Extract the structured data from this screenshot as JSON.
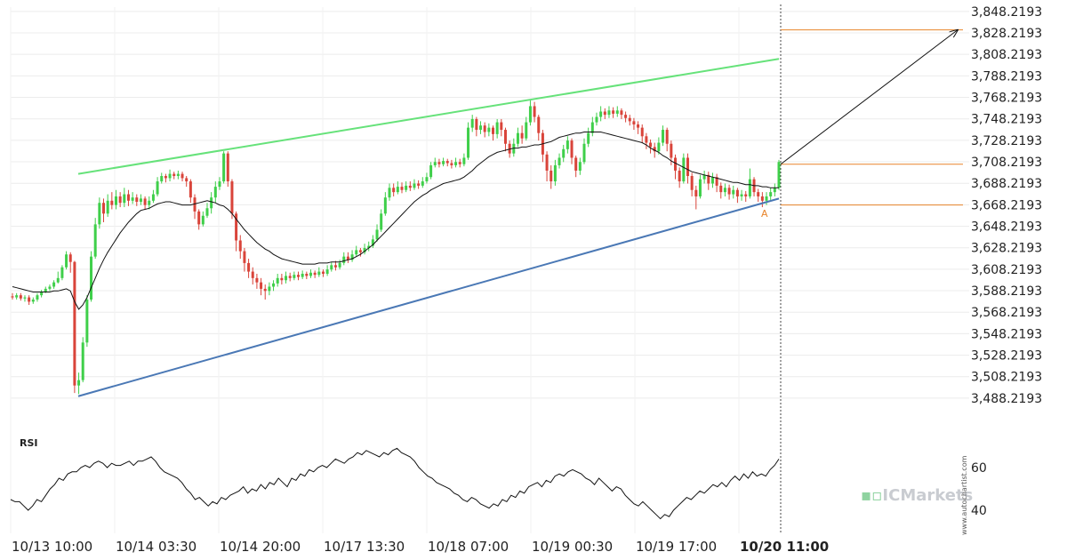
{
  "chart_data": {
    "type": "candlestick",
    "price_axis": {
      "ticks": [
        "3,848.2193",
        "3,828.2193",
        "3,808.2193",
        "3,788.2193",
        "3,768.2193",
        "3,748.2193",
        "3,728.2193",
        "3,708.2193",
        "3,688.2193",
        "3,668.2193",
        "3,648.2193",
        "3,628.2193",
        "3,608.2193",
        "3,588.2193",
        "3,568.2193",
        "3,548.2193",
        "3,528.2193",
        "3,508.2193",
        "3,488.2193"
      ],
      "range": [
        3478.2193,
        3852.2193
      ],
      "position": "right"
    },
    "time_axis": {
      "labels": [
        "10/13 10:00",
        "10/14 03:30",
        "10/14 20:00",
        "10/17 13:30",
        "10/18 07:00",
        "10/19 00:30",
        "10/19 17:00",
        "10/20 11:00"
      ],
      "highlighted": "10/20 11:00"
    },
    "candles": [
      [
        3583,
        3582,
        3586,
        3580
      ],
      [
        3582,
        3584,
        3586,
        3580
      ],
      [
        3584,
        3581,
        3586,
        3579
      ],
      [
        3581,
        3582,
        3584,
        3578
      ],
      [
        3582,
        3578,
        3584,
        3575
      ],
      [
        3578,
        3580,
        3582,
        3576
      ],
      [
        3580,
        3584,
        3586,
        3578
      ],
      [
        3584,
        3587,
        3589,
        3582
      ],
      [
        3587,
        3590,
        3592,
        3586
      ],
      [
        3590,
        3592,
        3594,
        3588
      ],
      [
        3592,
        3596,
        3598,
        3590
      ],
      [
        3596,
        3600,
        3606,
        3595
      ],
      [
        3600,
        3610,
        3612,
        3598
      ],
      [
        3610,
        3622,
        3625,
        3608
      ],
      [
        3622,
        3615,
        3624,
        3605
      ],
      [
        3615,
        3500,
        3616,
        3493
      ],
      [
        3500,
        3505,
        3512,
        3492
      ],
      [
        3505,
        3540,
        3545,
        3503
      ],
      [
        3540,
        3580,
        3584,
        3536
      ],
      [
        3580,
        3620,
        3625,
        3578
      ],
      [
        3620,
        3650,
        3656,
        3618
      ],
      [
        3650,
        3670,
        3675,
        3646
      ],
      [
        3670,
        3660,
        3674,
        3652
      ],
      [
        3660,
        3672,
        3678,
        3657
      ],
      [
        3672,
        3668,
        3680,
        3664
      ],
      [
        3668,
        3676,
        3682,
        3664
      ],
      [
        3676,
        3670,
        3680,
        3666
      ],
      [
        3670,
        3678,
        3684,
        3666
      ],
      [
        3678,
        3672,
        3682,
        3667
      ],
      [
        3672,
        3675,
        3680,
        3669
      ],
      [
        3675,
        3671,
        3678,
        3667
      ],
      [
        3671,
        3674,
        3678,
        3668
      ],
      [
        3674,
        3668,
        3676,
        3664
      ],
      [
        3668,
        3672,
        3676,
        3664
      ],
      [
        3672,
        3678,
        3682,
        3670
      ],
      [
        3678,
        3690,
        3694,
        3676
      ],
      [
        3690,
        3695,
        3698,
        3688
      ],
      [
        3695,
        3693,
        3697,
        3689
      ],
      [
        3693,
        3697,
        3701,
        3690
      ],
      [
        3697,
        3695,
        3699,
        3692
      ],
      [
        3695,
        3697,
        3700,
        3692
      ],
      [
        3697,
        3693,
        3699,
        3690
      ],
      [
        3693,
        3690,
        3695,
        3685
      ],
      [
        3690,
        3675,
        3692,
        3670
      ],
      [
        3675,
        3662,
        3678,
        3655
      ],
      [
        3662,
        3650,
        3664,
        3645
      ],
      [
        3650,
        3658,
        3662,
        3648
      ],
      [
        3658,
        3665,
        3670,
        3656
      ],
      [
        3665,
        3675,
        3680,
        3660
      ],
      [
        3675,
        3685,
        3690,
        3670
      ],
      [
        3685,
        3690,
        3694,
        3682
      ],
      [
        3690,
        3716,
        3718,
        3688
      ],
      [
        3716,
        3690,
        3718,
        3685
      ],
      [
        3690,
        3660,
        3692,
        3655
      ],
      [
        3660,
        3635,
        3662,
        3625
      ],
      [
        3635,
        3625,
        3640,
        3618
      ],
      [
        3625,
        3614,
        3628,
        3606
      ],
      [
        3614,
        3606,
        3618,
        3600
      ],
      [
        3606,
        3600,
        3610,
        3594
      ],
      [
        3600,
        3596,
        3604,
        3590
      ],
      [
        3596,
        3590,
        3600,
        3584
      ],
      [
        3590,
        3588,
        3594,
        3580
      ],
      [
        3588,
        3592,
        3596,
        3584
      ],
      [
        3592,
        3595,
        3598,
        3588
      ],
      [
        3595,
        3600,
        3604,
        3592
      ],
      [
        3600,
        3598,
        3604,
        3594
      ],
      [
        3598,
        3602,
        3606,
        3595
      ],
      [
        3602,
        3600,
        3605,
        3597
      ],
      [
        3600,
        3603,
        3606,
        3598
      ],
      [
        3603,
        3601,
        3606,
        3598
      ],
      [
        3601,
        3604,
        3607,
        3599
      ],
      [
        3604,
        3602,
        3606,
        3599
      ],
      [
        3602,
        3605,
        3608,
        3600
      ],
      [
        3605,
        3603,
        3607,
        3600
      ],
      [
        3603,
        3606,
        3610,
        3601
      ],
      [
        3606,
        3604,
        3608,
        3601
      ],
      [
        3604,
        3608,
        3612,
        3602
      ],
      [
        3608,
        3612,
        3615,
        3606
      ],
      [
        3612,
        3610,
        3616,
        3607
      ],
      [
        3610,
        3614,
        3617,
        3608
      ],
      [
        3614,
        3620,
        3624,
        3612
      ],
      [
        3620,
        3617,
        3624,
        3614
      ],
      [
        3617,
        3622,
        3626,
        3615
      ],
      [
        3622,
        3626,
        3630,
        3620
      ],
      [
        3626,
        3624,
        3628,
        3620
      ],
      [
        3624,
        3628,
        3632,
        3622
      ],
      [
        3628,
        3630,
        3634,
        3625
      ],
      [
        3630,
        3636,
        3640,
        3628
      ],
      [
        3636,
        3645,
        3650,
        3634
      ],
      [
        3645,
        3660,
        3664,
        3643
      ],
      [
        3660,
        3675,
        3680,
        3658
      ],
      [
        3675,
        3684,
        3688,
        3672
      ],
      [
        3684,
        3680,
        3688,
        3676
      ],
      [
        3680,
        3685,
        3690,
        3678
      ],
      [
        3685,
        3682,
        3689,
        3679
      ],
      [
        3682,
        3686,
        3690,
        3680
      ],
      [
        3686,
        3684,
        3690,
        3681
      ],
      [
        3684,
        3688,
        3692,
        3682
      ],
      [
        3688,
        3686,
        3691,
        3683
      ],
      [
        3686,
        3690,
        3694,
        3684
      ],
      [
        3690,
        3694,
        3698,
        3688
      ],
      [
        3694,
        3705,
        3708,
        3692
      ],
      [
        3705,
        3708,
        3712,
        3703
      ],
      [
        3708,
        3706,
        3711,
        3703
      ],
      [
        3706,
        3709,
        3712,
        3704
      ],
      [
        3709,
        3707,
        3711,
        3704
      ],
      [
        3707,
        3705,
        3710,
        3702
      ],
      [
        3705,
        3708,
        3712,
        3703
      ],
      [
        3708,
        3706,
        3711,
        3703
      ],
      [
        3706,
        3712,
        3716,
        3704
      ],
      [
        3712,
        3740,
        3745,
        3710
      ],
      [
        3740,
        3748,
        3752,
        3736
      ],
      [
        3748,
        3738,
        3750,
        3732
      ],
      [
        3738,
        3742,
        3746,
        3734
      ],
      [
        3742,
        3736,
        3745,
        3731
      ],
      [
        3736,
        3740,
        3744,
        3732
      ],
      [
        3740,
        3734,
        3742,
        3728
      ],
      [
        3734,
        3745,
        3748,
        3730
      ],
      [
        3745,
        3738,
        3748,
        3732
      ],
      [
        3738,
        3725,
        3740,
        3718
      ],
      [
        3725,
        3716,
        3728,
        3712
      ],
      [
        3716,
        3725,
        3730,
        3713
      ],
      [
        3725,
        3735,
        3740,
        3722
      ],
      [
        3735,
        3730,
        3742,
        3725
      ],
      [
        3730,
        3745,
        3750,
        3728
      ],
      [
        3745,
        3760,
        3766,
        3742
      ],
      [
        3760,
        3750,
        3764,
        3745
      ],
      [
        3750,
        3735,
        3752,
        3728
      ],
      [
        3735,
        3715,
        3738,
        3708
      ],
      [
        3715,
        3700,
        3718,
        3690
      ],
      [
        3700,
        3690,
        3705,
        3683
      ],
      [
        3690,
        3705,
        3710,
        3686
      ],
      [
        3705,
        3712,
        3716,
        3702
      ],
      [
        3712,
        3720,
        3724,
        3708
      ],
      [
        3720,
        3728,
        3732,
        3716
      ],
      [
        3728,
        3712,
        3730,
        3706
      ],
      [
        3712,
        3700,
        3714,
        3694
      ],
      [
        3700,
        3708,
        3712,
        3696
      ],
      [
        3708,
        3725,
        3730,
        3706
      ],
      [
        3725,
        3735,
        3740,
        3722
      ],
      [
        3735,
        3745,
        3750,
        3732
      ],
      [
        3745,
        3750,
        3754,
        3742
      ],
      [
        3750,
        3755,
        3760,
        3746
      ],
      [
        3755,
        3752,
        3758,
        3748
      ],
      [
        3752,
        3756,
        3760,
        3749
      ],
      [
        3756,
        3753,
        3759,
        3749
      ],
      [
        3753,
        3756,
        3760,
        3750
      ],
      [
        3756,
        3752,
        3758,
        3748
      ],
      [
        3752,
        3749,
        3755,
        3745
      ],
      [
        3749,
        3746,
        3752,
        3742
      ],
      [
        3746,
        3743,
        3749,
        3738
      ],
      [
        3743,
        3740,
        3746,
        3734
      ],
      [
        3740,
        3732,
        3743,
        3726
      ],
      [
        3732,
        3726,
        3735,
        3720
      ],
      [
        3726,
        3722,
        3729,
        3716
      ],
      [
        3722,
        3718,
        3726,
        3712
      ],
      [
        3718,
        3726,
        3731,
        3715
      ],
      [
        3726,
        3738,
        3742,
        3723
      ],
      [
        3738,
        3725,
        3740,
        3718
      ],
      [
        3725,
        3712,
        3728,
        3705
      ],
      [
        3712,
        3700,
        3715,
        3692
      ],
      [
        3700,
        3690,
        3703,
        3684
      ],
      [
        3690,
        3712,
        3716,
        3688
      ],
      [
        3712,
        3695,
        3716,
        3688
      ],
      [
        3695,
        3682,
        3698,
        3676
      ],
      [
        3682,
        3676,
        3686,
        3664
      ],
      [
        3676,
        3692,
        3696,
        3674
      ],
      [
        3692,
        3696,
        3700,
        3688
      ],
      [
        3696,
        3688,
        3699,
        3682
      ],
      [
        3688,
        3694,
        3698,
        3684
      ],
      [
        3694,
        3686,
        3697,
        3680
      ],
      [
        3686,
        3680,
        3689,
        3674
      ],
      [
        3680,
        3684,
        3688,
        3676
      ],
      [
        3684,
        3678,
        3687,
        3673
      ],
      [
        3678,
        3682,
        3686,
        3674
      ],
      [
        3682,
        3676,
        3684,
        3670
      ],
      [
        3676,
        3678,
        3682,
        3672
      ],
      [
        3678,
        3676,
        3681,
        3671
      ],
      [
        3676,
        3692,
        3702,
        3674
      ],
      [
        3692,
        3680,
        3694,
        3676
      ],
      [
        3680,
        3676,
        3683,
        3671
      ],
      [
        3676,
        3672,
        3680,
        3666
      ],
      [
        3672,
        3676,
        3680,
        3668
      ],
      [
        3676,
        3680,
        3684,
        3672
      ],
      [
        3680,
        3684,
        3688,
        3676
      ],
      [
        3684,
        3708,
        3710,
        3682
      ]
    ],
    "moving_average": [
      3592,
      3591,
      3590,
      3589,
      3588,
      3587,
      3587,
      3587,
      3587,
      3587,
      3588,
      3588,
      3589,
      3590,
      3588,
      3578,
      3571,
      3575,
      3582,
      3591,
      3600,
      3609,
      3617,
      3624,
      3630,
      3636,
      3642,
      3647,
      3652,
      3656,
      3660,
      3663,
      3664,
      3665,
      3667,
      3669,
      3670,
      3671,
      3671,
      3670,
      3669,
      3668,
      3668,
      3668,
      3669,
      3670,
      3671,
      3672,
      3671,
      3670,
      3668,
      3667,
      3664,
      3660,
      3655,
      3650,
      3645,
      3641,
      3637,
      3633,
      3630,
      3627,
      3625,
      3622,
      3620,
      3618,
      3617,
      3616,
      3615,
      3614,
      3613,
      3613,
      3613,
      3613,
      3614,
      3614,
      3614,
      3615,
      3615,
      3615,
      3616,
      3617,
      3618,
      3620,
      3622,
      3625,
      3628,
      3631,
      3635,
      3639,
      3643,
      3647,
      3651,
      3655,
      3659,
      3663,
      3667,
      3671,
      3674,
      3677,
      3679,
      3682,
      3684,
      3686,
      3688,
      3689,
      3690,
      3691,
      3692,
      3694,
      3697,
      3700,
      3704,
      3707,
      3710,
      3713,
      3715,
      3717,
      3718,
      3719,
      3720,
      3721,
      3721,
      3722,
      3722,
      3723,
      3724,
      3724,
      3725,
      3726,
      3727,
      3729,
      3731,
      3732,
      3733,
      3734,
      3735,
      3735,
      3736,
      3736,
      3736,
      3736,
      3736,
      3735,
      3734,
      3733,
      3732,
      3731,
      3730,
      3729,
      3728,
      3727,
      3726,
      3724,
      3721,
      3719,
      3717,
      3714,
      3712,
      3709,
      3707,
      3705,
      3703,
      3701,
      3699,
      3698,
      3697,
      3696,
      3695,
      3694,
      3693,
      3692,
      3691,
      3690,
      3689,
      3689,
      3688,
      3687,
      3687,
      3686,
      3686,
      3685,
      3685,
      3684,
      3684,
      3684
    ],
    "resistance_line": {
      "from_time": "10/13 10:00",
      "start": 3697,
      "end": 3804,
      "color": "#66e27a"
    },
    "support_line": {
      "from_time": "10/13 10:00",
      "start": 3490,
      "end": 3674,
      "color": "#4a78b5"
    },
    "horizontal_levels": [
      {
        "value": 3831,
        "color": "#e8842a"
      },
      {
        "value": 3706,
        "color": "#e8842a"
      },
      {
        "value": 3668,
        "color": "#e8842a"
      }
    ],
    "projection": {
      "from": 3706,
      "to": 3831
    },
    "marker_label": "A",
    "rsi": {
      "title": "RSI",
      "ticks": [
        "60",
        "40"
      ],
      "range": [
        30,
        75
      ],
      "values": [
        45,
        44,
        44,
        42,
        40,
        42,
        45,
        44,
        47,
        50,
        52,
        55,
        54,
        57,
        58,
        58,
        60,
        61,
        60,
        62,
        63,
        62,
        60,
        62,
        61,
        61,
        62,
        63,
        61,
        63,
        63,
        64,
        65,
        63,
        60,
        58,
        57,
        56,
        55,
        53,
        50,
        48,
        45,
        46,
        44,
        42,
        44,
        43,
        46,
        45,
        47,
        48,
        49,
        51,
        48,
        50,
        49,
        52,
        50,
        53,
        52,
        55,
        53,
        51,
        55,
        54,
        57,
        56,
        59,
        58,
        60,
        61,
        60,
        62,
        64,
        63,
        62,
        64,
        65,
        67,
        66,
        68,
        67,
        66,
        65,
        67,
        66,
        68,
        69,
        67,
        66,
        65,
        63,
        60,
        58,
        56,
        55,
        53,
        52,
        51,
        50,
        48,
        47,
        45,
        44,
        46,
        45,
        43,
        42,
        41,
        43,
        42,
        45,
        44,
        47,
        46,
        49,
        48,
        51,
        52,
        53,
        51,
        54,
        53,
        56,
        57,
        56,
        58,
        59,
        58,
        57,
        55,
        54,
        52,
        55,
        53,
        51,
        49,
        51,
        50,
        47,
        45,
        43,
        42,
        44,
        42,
        40,
        38,
        36,
        38,
        37,
        40,
        42,
        44,
        46,
        45,
        47,
        49,
        48,
        50,
        52,
        51,
        53,
        51,
        54,
        56,
        54,
        57,
        55,
        58,
        56,
        57,
        56,
        59,
        61,
        64
      ]
    }
  },
  "watermark": {
    "brand": "ICMarkets",
    "vertical": "www.autochartist.com"
  }
}
